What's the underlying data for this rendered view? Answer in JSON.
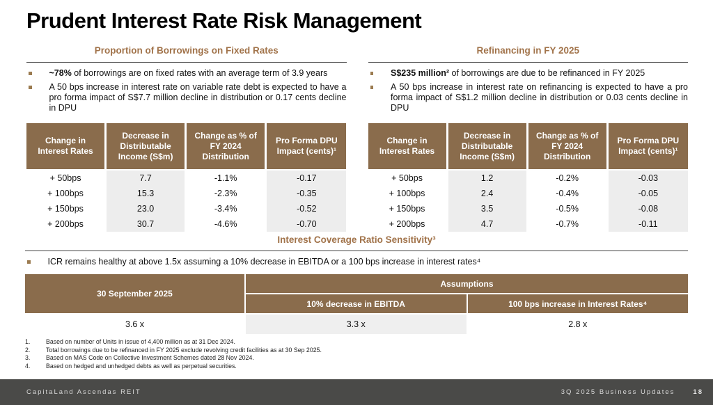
{
  "slide": {
    "title": "Prudent Interest Rate Risk Management"
  },
  "common": {
    "table_headers": [
      "Change in Interest Rates",
      "Decrease in Distributable Income (S$m)",
      "Change as % of FY 2024 Distribution",
      "Pro Forma DPU Impact (cents)¹"
    ]
  },
  "sections": {
    "fixed_rates": {
      "heading": "Proportion of Borrowings on Fixed Rates",
      "bullet1_bold": "~78%",
      "bullet1_rest": " of borrowings are on fixed rates with an average term of 3.9 years",
      "bullet2": "A 50 bps increase in interest rate on variable rate debt is expected to have a pro forma impact of S$7.7 million decline in distribution or 0.17 cents decline in DPU",
      "table": {
        "rows": [
          [
            "+ 50bps",
            "7.7",
            "-1.1%",
            "-0.17"
          ],
          [
            "+ 100bps",
            "15.3",
            "-2.3%",
            "-0.35"
          ],
          [
            "+ 150bps",
            "23.0",
            "-3.4%",
            "-0.52"
          ],
          [
            "+ 200bps",
            "30.7",
            "-4.6%",
            "-0.70"
          ]
        ]
      }
    },
    "refinancing": {
      "heading": "Refinancing in FY 2025",
      "bullet1_bold": "S$235 million²",
      "bullet1_rest": " of borrowings are due to be refinanced in FY 2025",
      "bullet2": "A 50 bps increase in interest rate on refinancing is expected to have a pro forma impact of S$1.2 million decline in distribution or 0.03 cents decline in DPU",
      "table": {
        "rows": [
          [
            "+ 50bps",
            "1.2",
            "-0.2%",
            "-0.03"
          ],
          [
            "+ 100bps",
            "2.4",
            "-0.4%",
            "-0.05"
          ],
          [
            "+ 150bps",
            "3.5",
            "-0.5%",
            "-0.08"
          ],
          [
            "+ 200bps",
            "4.7",
            "-0.7%",
            "-0.11"
          ]
        ]
      }
    },
    "icr": {
      "heading": "Interest Coverage Ratio Sensitivity³",
      "bullet": "ICR remains healthy at above 1.5x assuming a 10% decrease in EBITDA or a 100 bps increase in interest rates⁴",
      "table": {
        "col1_header": "30 September 2025",
        "assumptions_header": "Assumptions",
        "sub_header_ebitda": "10% decrease in EBITDA",
        "sub_header_rates": "100 bps increase in Interest Rates⁴",
        "values": [
          "3.6 x",
          "3.3 x",
          "2.8 x"
        ]
      }
    }
  },
  "footnotes": {
    "numbers": [
      "1.",
      "2.",
      "3.",
      "4."
    ],
    "items": [
      "Based on number of Units in issue of 4,400 million as at 31 Dec 2024.",
      "Total borrowings due to be refinanced in FY 2025 exclude revolving credit facilities as at 30 Sep 2025.",
      "Based on MAS Code on Collective Investment Schemes dated 28 Nov 2024.",
      "Based on hedged and unhedged debts as well as perpetual securities."
    ]
  },
  "footer": {
    "left": "CapitaLand Ascendas REIT",
    "right": "3Q 2025 Business Updates",
    "page": "18"
  },
  "colors": {
    "table_header_bg": "#8A6C4C",
    "section_heading_text": "#A1734A",
    "shaded_cell_bg": "#EDEDED",
    "footer_bg": "#4A4A48"
  }
}
